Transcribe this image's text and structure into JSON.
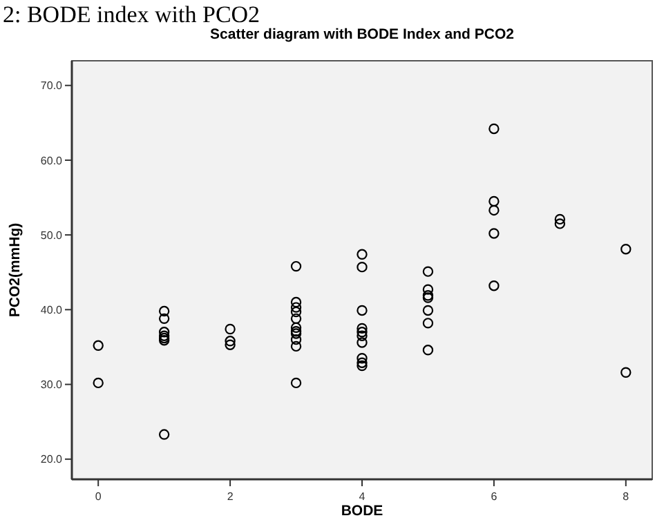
{
  "chart_data": {
    "type": "scatter",
    "title": "Scatter diagram with BODE Index and PCO2",
    "subtitle": "2: BODE index with PCO2",
    "xlabel": "BODE",
    "ylabel": "PCO2(mmHg)",
    "series": [
      {
        "color": "#000000",
        "x": [
          0,
          0,
          1,
          1,
          1,
          1,
          1,
          1,
          1,
          2,
          2,
          2,
          3,
          3,
          3,
          3,
          3,
          3,
          3,
          3,
          3,
          3,
          3,
          4,
          4,
          4,
          4,
          4,
          4,
          4,
          4,
          4,
          4,
          5,
          5,
          5,
          5,
          5,
          5,
          5,
          6,
          6,
          6,
          6,
          6,
          7,
          7,
          8,
          8
        ],
        "values": [
          35.2,
          30.2,
          39.8,
          38.8,
          37.0,
          36.5,
          36.2,
          35.9,
          23.3,
          37.4,
          35.8,
          35.3,
          45.8,
          41.0,
          40.3,
          39.7,
          38.8,
          37.6,
          37.1,
          36.8,
          36.0,
          35.1,
          30.2,
          47.4,
          45.7,
          39.9,
          37.5,
          37.0,
          36.5,
          35.6,
          33.5,
          32.9,
          32.5,
          45.1,
          42.7,
          41.9,
          41.6,
          39.9,
          38.2,
          34.6,
          64.2,
          54.5,
          53.3,
          50.2,
          43.2,
          52.1,
          51.5,
          48.1,
          31.6
        ]
      }
    ],
    "xlim": [
      -0.4,
      8.4
    ],
    "xticks": [
      0,
      2,
      4,
      6,
      8
    ],
    "ylim": [
      17.3,
      73.3
    ],
    "yticks": [
      {
        "value": 20,
        "label": "20.0"
      },
      {
        "value": 30,
        "label": "30.0"
      },
      {
        "value": 40,
        "label": "40.0"
      },
      {
        "value": 50,
        "label": "50.0"
      },
      {
        "value": 60,
        "label": "60.0"
      },
      {
        "value": 70,
        "label": "70.0"
      }
    ],
    "marker": "circle"
  }
}
